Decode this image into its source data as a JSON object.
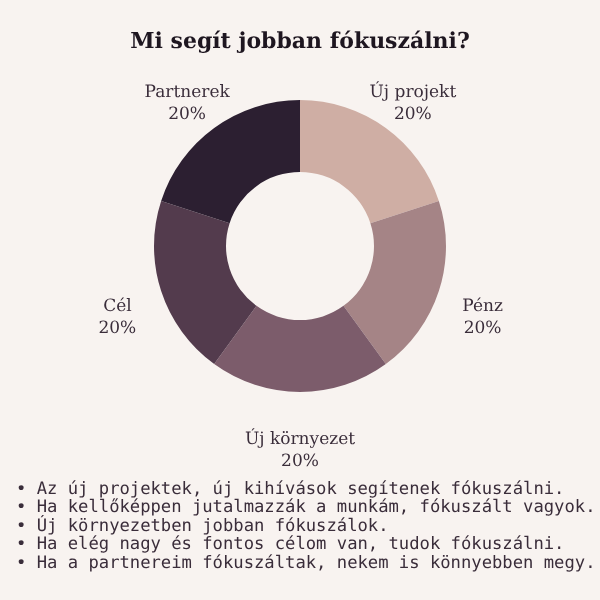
{
  "chart_data": {
    "type": "donut",
    "title": "Mi segít jobban fókuszálni?",
    "categories": [
      "Új projekt",
      "Pénz",
      "Új környezet",
      "Cél",
      "Partnerek"
    ],
    "values": [
      20,
      20,
      20,
      20,
      20
    ],
    "value_labels": [
      "20%",
      "20%",
      "20%",
      "20%",
      "20%"
    ],
    "colors": [
      "#cfaea4",
      "#a58486",
      "#7c5c6b",
      "#533b4d",
      "#2c1f31"
    ],
    "legend": false,
    "annotations": [
      "• Az új projektek, új kihívások segítenek fókuszálni.",
      "• Ha kellőképpen jutalmazzák a munkám, fókuszált vagyok.",
      "• Új környezetben jobban fókuszálok.",
      "• Ha elég nagy és fontos célom van, tudok fókuszálni.",
      "• Ha a partnereim fókuszáltak, nekem is könnyebben megy."
    ]
  }
}
